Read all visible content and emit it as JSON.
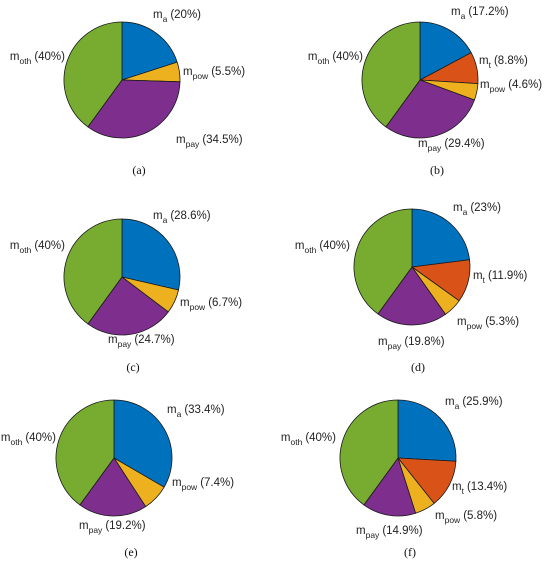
{
  "colors": {
    "m_a": "#0072bd",
    "m_t": "#d95319",
    "m_pow": "#edb120",
    "m_pay": "#7e2f8e",
    "m_oth": "#77ac30"
  },
  "chart_data": [
    {
      "type": "pie",
      "caption": "(a)",
      "slices": [
        {
          "key": "m_a",
          "base": "m",
          "sub": "a",
          "pct_text": "(20%)",
          "value": 20
        },
        {
          "key": "m_pow",
          "base": "m",
          "sub": "pow",
          "pct_text": "(5.5%)",
          "value": 5.5
        },
        {
          "key": "m_pay",
          "base": "m",
          "sub": "pay",
          "pct_text": "(34.5%)",
          "value": 34.5
        },
        {
          "key": "m_oth",
          "base": "m",
          "sub": "oth",
          "pct_text": "(40%)",
          "value": 40
        }
      ]
    },
    {
      "type": "pie",
      "caption": "(b)",
      "slices": [
        {
          "key": "m_a",
          "base": "m",
          "sub": "a",
          "pct_text": "(17.2%)",
          "value": 17.2
        },
        {
          "key": "m_t",
          "base": "m",
          "sub": "t",
          "pct_text": "(8.8%)",
          "value": 8.8
        },
        {
          "key": "m_pow",
          "base": "m",
          "sub": "pow",
          "pct_text": "(4.6%)",
          "value": 4.6
        },
        {
          "key": "m_pay",
          "base": "m",
          "sub": "pay",
          "pct_text": "(29.4%)",
          "value": 29.4
        },
        {
          "key": "m_oth",
          "base": "m",
          "sub": "oth",
          "pct_text": "(40%)",
          "value": 40
        }
      ]
    },
    {
      "type": "pie",
      "caption": "(c)",
      "slices": [
        {
          "key": "m_a",
          "base": "m",
          "sub": "a",
          "pct_text": "(28.6%)",
          "value": 28.6
        },
        {
          "key": "m_pow",
          "base": "m",
          "sub": "pow",
          "pct_text": "(6.7%)",
          "value": 6.7
        },
        {
          "key": "m_pay",
          "base": "m",
          "sub": "pay",
          "pct_text": "(24.7%)",
          "value": 24.7
        },
        {
          "key": "m_oth",
          "base": "m",
          "sub": "oth",
          "pct_text": "(40%)",
          "value": 40
        }
      ]
    },
    {
      "type": "pie",
      "caption": "(d)",
      "slices": [
        {
          "key": "m_a",
          "base": "m",
          "sub": "a",
          "pct_text": "(23%)",
          "value": 23
        },
        {
          "key": "m_t",
          "base": "m",
          "sub": "t",
          "pct_text": "(11.9%)",
          "value": 11.9
        },
        {
          "key": "m_pow",
          "base": "m",
          "sub": "pow",
          "pct_text": "(5.3%)",
          "value": 5.3
        },
        {
          "key": "m_pay",
          "base": "m",
          "sub": "pay",
          "pct_text": "(19.8%)",
          "value": 19.8
        },
        {
          "key": "m_oth",
          "base": "m",
          "sub": "oth",
          "pct_text": "(40%)",
          "value": 40
        }
      ]
    },
    {
      "type": "pie",
      "caption": "(e)",
      "slices": [
        {
          "key": "m_a",
          "base": "m",
          "sub": "a",
          "pct_text": "(33.4%)",
          "value": 33.4
        },
        {
          "key": "m_pow",
          "base": "m",
          "sub": "pow",
          "pct_text": "(7.4%)",
          "value": 7.4
        },
        {
          "key": "m_pay",
          "base": "m",
          "sub": "pay",
          "pct_text": "(19.2%)",
          "value": 19.2
        },
        {
          "key": "m_oth",
          "base": "m",
          "sub": "oth",
          "pct_text": "(40%)",
          "value": 40
        }
      ]
    },
    {
      "type": "pie",
      "caption": "(f)",
      "slices": [
        {
          "key": "m_a",
          "base": "m",
          "sub": "a",
          "pct_text": "(25.9%)",
          "value": 25.9
        },
        {
          "key": "m_t",
          "base": "m",
          "sub": "t",
          "pct_text": "(13.4%)",
          "value": 13.4
        },
        {
          "key": "m_pow",
          "base": "m",
          "sub": "pow",
          "pct_text": "(5.8%)",
          "value": 5.8
        },
        {
          "key": "m_pay",
          "base": "m",
          "sub": "pay",
          "pct_text": "(14.9%)",
          "value": 14.9
        },
        {
          "key": "m_oth",
          "base": "m",
          "sub": "oth",
          "pct_text": "(40%)",
          "value": 40
        }
      ]
    }
  ]
}
